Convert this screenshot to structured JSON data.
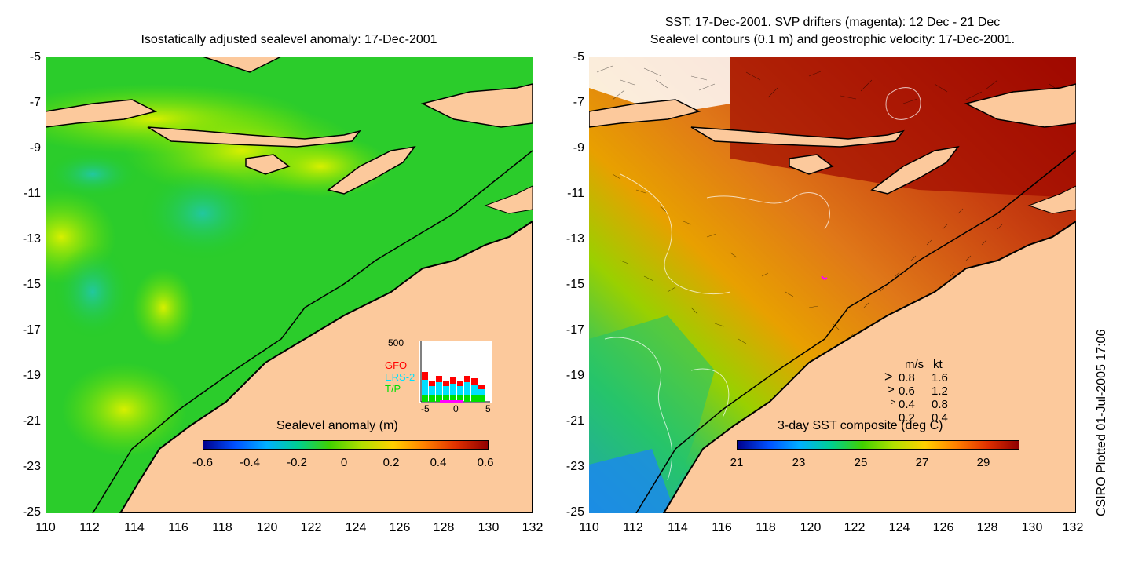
{
  "left_panel": {
    "title": "Isostatically adjusted sealevel anomaly: 17-Dec-2001",
    "colorbar_label": "Sealevel anomaly (m)",
    "colorbar_ticks": [
      "-0.6",
      "-0.4",
      "-0.2",
      "0",
      "0.2",
      "0.4",
      "0.6"
    ],
    "inset": {
      "ymax_label": "500",
      "legend": [
        {
          "label": "GFO",
          "color": "#ff0000"
        },
        {
          "label": "ERS-2",
          "color": "#00e0ff"
        },
        {
          "label": "T/P",
          "color": "#00e000"
        }
      ],
      "x_ticks": [
        "-5",
        "0",
        "5"
      ]
    }
  },
  "right_panel": {
    "title_line1": "SST: 17-Dec-2001. SVP drifters (magenta): 12 Dec - 21 Dec",
    "title_line2": "Sealevel contours (0.1 m) and geostrophic velocity: 17-Dec-2001.",
    "colorbar_label": "3-day SST composite (deg C)",
    "colorbar_ticks": [
      "21",
      "23",
      "25",
      "27",
      "29"
    ],
    "velocity_legend": {
      "header_ms": "m/s",
      "header_kt": "kt",
      "rows": [
        {
          "ms": "0.8",
          "kt": "1.6"
        },
        {
          "ms": "0.6",
          "kt": "1.2"
        },
        {
          "ms": "0.4",
          "kt": "0.8"
        },
        {
          "ms": "0.2",
          "kt": "0.4"
        }
      ]
    }
  },
  "axes": {
    "y_ticks": [
      "-5",
      "-7",
      "-9",
      "-11",
      "-13",
      "-15",
      "-17",
      "-19",
      "-21",
      "-23",
      "-25"
    ],
    "x_ticks": [
      "110",
      "112",
      "114",
      "116",
      "118",
      "120",
      "122",
      "124",
      "126",
      "128",
      "130",
      "132"
    ]
  },
  "credit": "CSIRO Plotted 01-Jul-2005 17:06",
  "colors": {
    "land": "#fcc99c",
    "sla_background": "#22cc22",
    "sst_warm": "#c83c10",
    "sst_dark": "#a00800",
    "sst_cool": "#26c46a"
  }
}
